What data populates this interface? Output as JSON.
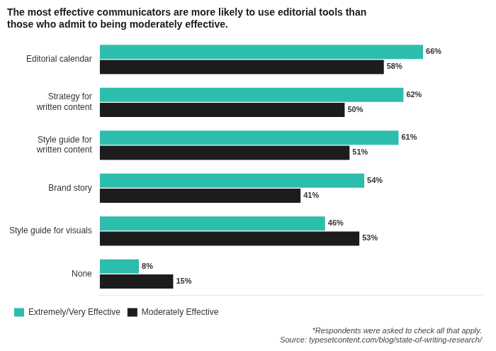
{
  "chart_data": {
    "type": "bar",
    "orientation": "horizontal",
    "title": [
      "The most effective communicators are more likely to use editorial tools than",
      "those who admit to being moderately effective."
    ],
    "categories": [
      "Editorial calendar",
      "Strategy for\nwritten content",
      "Style guide for\nwritten content",
      "Brand story",
      "Style guide for visuals",
      "None"
    ],
    "series": [
      {
        "name": "Extremely/Very Effective",
        "color": "#2DBDAD",
        "values": [
          66,
          62,
          61,
          54,
          46,
          8
        ],
        "value_labels": [
          "66%",
          "62%",
          "61%",
          "54%",
          "46%",
          "8%"
        ]
      },
      {
        "name": "Moderately Effective",
        "color": "#1C1C1C",
        "values": [
          58,
          50,
          51,
          41,
          53,
          15
        ],
        "value_labels": [
          "58%",
          "50%",
          "51%",
          "41%",
          "53%",
          "15%"
        ]
      }
    ],
    "xlim": [
      0,
      78
    ],
    "tick_labels": "y",
    "grid": false,
    "legend": "lower left",
    "data_labels": true,
    "annotations": [
      "*Respondents were asked to check all that apply.",
      "Source: typesetcontent.com/blog/state-of-writing-research/"
    ]
  }
}
